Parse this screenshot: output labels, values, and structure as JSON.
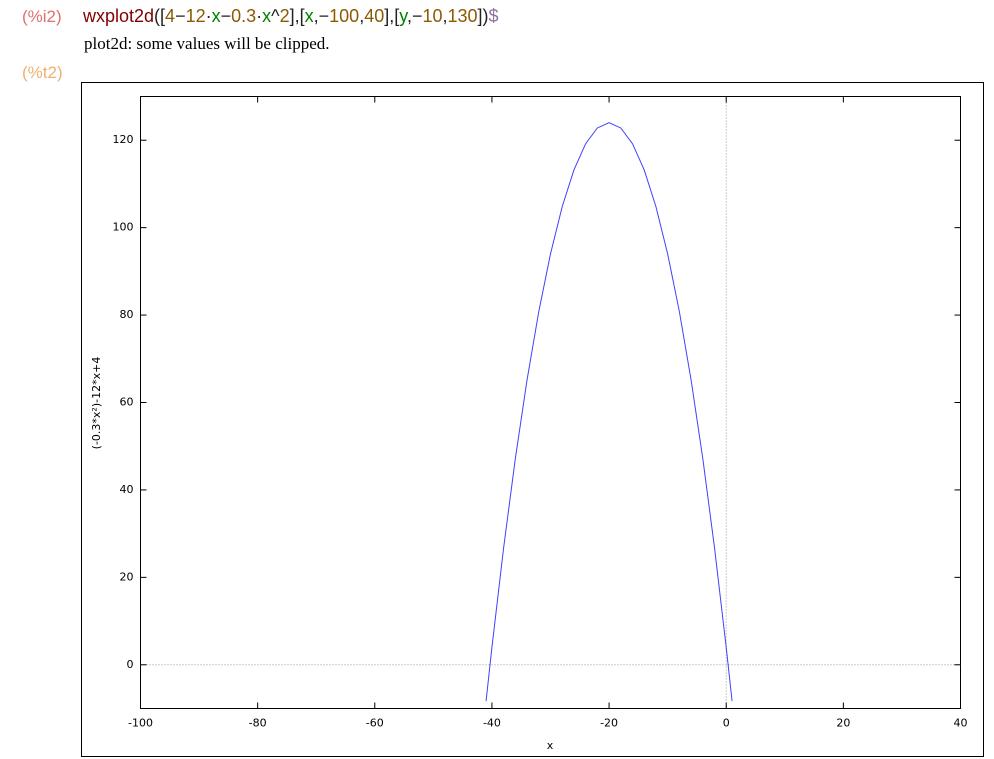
{
  "input": {
    "label": "(%i2)",
    "label_color": "#e07070",
    "tokens": [
      {
        "text": "wxplot2d",
        "color": "#800000"
      },
      {
        "text": "([",
        "color": "#222222"
      },
      {
        "text": "4",
        "color": "#8b5a00"
      },
      {
        "text": "−",
        "color": "#222222"
      },
      {
        "text": "12",
        "color": "#8b5a00"
      },
      {
        "text": "·",
        "color": "#222222"
      },
      {
        "text": "x",
        "color": "#008000"
      },
      {
        "text": "−",
        "color": "#222222"
      },
      {
        "text": "0.3",
        "color": "#8b5a00"
      },
      {
        "text": "·",
        "color": "#222222"
      },
      {
        "text": "x",
        "color": "#008000"
      },
      {
        "text": "^",
        "color": "#222222"
      },
      {
        "text": "2",
        "color": "#8b5a00"
      },
      {
        "text": "],[",
        "color": "#222222"
      },
      {
        "text": "x",
        "color": "#008000"
      },
      {
        "text": ",−",
        "color": "#222222"
      },
      {
        "text": "100",
        "color": "#8b5a00"
      },
      {
        "text": ",",
        "color": "#222222"
      },
      {
        "text": "40",
        "color": "#8b5a00"
      },
      {
        "text": "],[",
        "color": "#222222"
      },
      {
        "text": "y",
        "color": "#008000"
      },
      {
        "text": ",−",
        "color": "#222222"
      },
      {
        "text": "10",
        "color": "#8b5a00"
      },
      {
        "text": ",",
        "color": "#222222"
      },
      {
        "text": "130",
        "color": "#8b5a00"
      },
      {
        "text": "])",
        "color": "#222222"
      },
      {
        "text": "$",
        "color": "#9070a0"
      }
    ]
  },
  "message": "plot2d: some values will be clipped.",
  "output_label": "(%t2)",
  "output_label_color": "#f0b070",
  "chart_data": {
    "type": "line",
    "xlabel": "x",
    "ylabel": "(-0.3*x²)-12*x+4",
    "x": [
      -41,
      -40,
      -38,
      -36,
      -34,
      -32,
      -30,
      -28,
      -26,
      -24,
      -22,
      -20,
      -18,
      -16,
      -14,
      -12,
      -10,
      -8,
      -6,
      -4,
      -2,
      0,
      1
    ],
    "values": [
      -8.3,
      4,
      26.8,
      47.2,
      65.2,
      80.8,
      94,
      104.8,
      113.2,
      119.2,
      122.8,
      124,
      122.8,
      119.2,
      113.2,
      104.8,
      94,
      80.8,
      65.2,
      47.2,
      26.8,
      4,
      -8.3
    ],
    "color": "#4040ff",
    "xlim": [
      -100,
      40
    ],
    "xticks": [
      -100,
      -80,
      -60,
      -40,
      -20,
      0,
      20,
      40
    ],
    "ylim": [
      -10,
      130
    ],
    "yticks": [
      0,
      20,
      40,
      60,
      80,
      100,
      120
    ],
    "zero_axes": true
  }
}
